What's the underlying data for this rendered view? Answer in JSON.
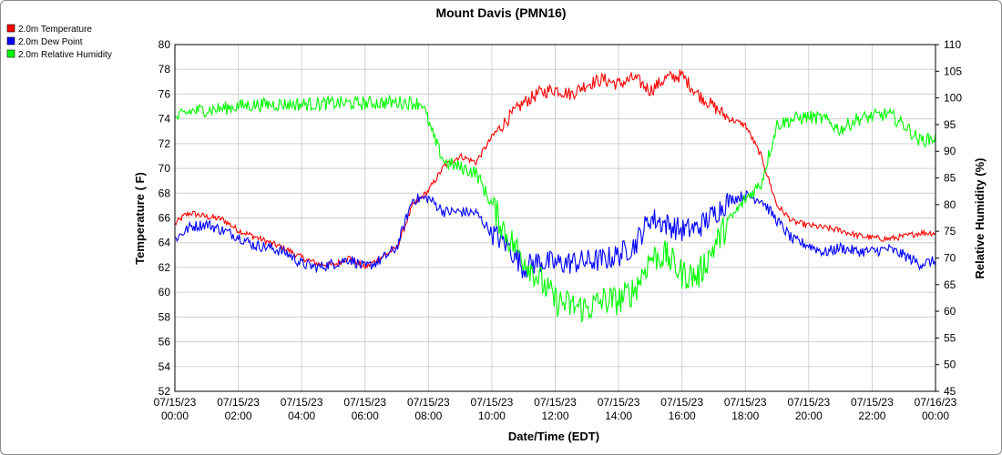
{
  "chart_data": {
    "type": "line",
    "title": "Mount Davis (PMN16)",
    "xlabel": "Date/Time (EDT)",
    "ylabel_left": "Temperature ( F)",
    "ylabel_right": "Relative Humidity (%)",
    "y_left_range": [
      52,
      80
    ],
    "y_right_range": [
      45,
      110
    ],
    "x_range_hours": [
      0,
      24
    ],
    "grid": true,
    "legend_position": "top-left",
    "x_ticks": [
      {
        "date": "07/15/23",
        "time": "00:00"
      },
      {
        "date": "07/15/23",
        "time": "02:00"
      },
      {
        "date": "07/15/23",
        "time": "04:00"
      },
      {
        "date": "07/15/23",
        "time": "06:00"
      },
      {
        "date": "07/15/23",
        "time": "08:00"
      },
      {
        "date": "07/15/23",
        "time": "10:00"
      },
      {
        "date": "07/15/23",
        "time": "12:00"
      },
      {
        "date": "07/15/23",
        "time": "14:00"
      },
      {
        "date": "07/15/23",
        "time": "16:00"
      },
      {
        "date": "07/15/23",
        "time": "18:00"
      },
      {
        "date": "07/15/23",
        "time": "20:00"
      },
      {
        "date": "07/15/23",
        "time": "22:00"
      },
      {
        "date": "07/16/23",
        "time": "00:00"
      }
    ],
    "y_left_ticks": [
      "52",
      "54",
      "56",
      "58",
      "60",
      "62",
      "64",
      "66",
      "68",
      "70",
      "72",
      "74",
      "76",
      "78",
      "80"
    ],
    "y_right_ticks": [
      "45",
      "50",
      "55",
      "60",
      "65",
      "70",
      "75",
      "80",
      "85",
      "90",
      "95",
      "100",
      "105",
      "110"
    ],
    "series": [
      {
        "name": "2.0m Temperature",
        "color": "#ff0000",
        "axis": "left",
        "x": [
          0,
          0.3,
          0.5,
          1,
          1.5,
          2,
          2.5,
          3,
          3.5,
          4,
          4.5,
          5,
          5.5,
          6,
          6.5,
          7,
          7.5,
          8,
          8.5,
          9,
          9.5,
          10,
          10.5,
          11,
          11.5,
          12,
          12.5,
          13,
          13.5,
          14,
          14.5,
          15,
          15.5,
          16,
          16.5,
          17,
          17.5,
          18,
          18.5,
          19,
          19.5,
          20,
          20.5,
          21,
          21.5,
          22,
          22.5,
          23,
          23.5,
          24
        ],
        "values": [
          65.5,
          66.2,
          66.4,
          66.1,
          65.9,
          65.0,
          64.5,
          64.0,
          63.5,
          62.8,
          62.3,
          62.2,
          62.8,
          62.0,
          62.8,
          63.6,
          67.0,
          68.2,
          70.2,
          71.0,
          70.5,
          72.5,
          74.0,
          75.3,
          76.1,
          76.4,
          76.0,
          76.8,
          77.2,
          76.8,
          77.3,
          76.3,
          77.3,
          77.5,
          76.0,
          75.0,
          74.0,
          73.5,
          71.0,
          67.0,
          65.7,
          65.4,
          65.2,
          65.0,
          64.6,
          64.4,
          64.3,
          64.5,
          64.8,
          64.8
        ]
      },
      {
        "name": "2.0m Dew Point",
        "color": "#0000ff",
        "axis": "left",
        "x": [
          0,
          0.5,
          1,
          1.5,
          2,
          2.5,
          3,
          3.5,
          4,
          4.5,
          5,
          5.5,
          6,
          6.5,
          7,
          7.5,
          8,
          8.5,
          9,
          9.5,
          10,
          10.5,
          11,
          11.5,
          12,
          12.5,
          13,
          13.5,
          14,
          14.5,
          15,
          15.5,
          16,
          16.5,
          17,
          17.5,
          18,
          18.5,
          19,
          19.5,
          20,
          20.5,
          21,
          21.5,
          22,
          22.5,
          23,
          23.5,
          24
        ],
        "values": [
          64.3,
          65.3,
          65.5,
          65.0,
          64.5,
          63.8,
          63.6,
          63.2,
          62.3,
          62.0,
          62.3,
          62.7,
          62.0,
          62.6,
          63.6,
          67.5,
          67.6,
          66.5,
          66.5,
          66.4,
          64.8,
          63.8,
          62.0,
          62.5,
          62.3,
          62.4,
          62.5,
          62.6,
          63.0,
          63.8,
          66.0,
          65.5,
          65.0,
          65.2,
          66.3,
          67.5,
          67.8,
          67.5,
          65.8,
          64.2,
          63.8,
          63.2,
          63.6,
          63.3,
          63.3,
          63.5,
          63.0,
          62.3,
          62.5
        ]
      },
      {
        "name": "2.0m Relative Humidity",
        "color": "#00ff00",
        "axis": "right",
        "x": [
          0,
          0.3,
          0.5,
          1,
          1.5,
          2,
          3,
          4,
          5,
          6,
          7,
          7.8,
          8.2,
          8.5,
          9,
          9.5,
          10,
          10.5,
          11,
          11.5,
          12,
          12.5,
          13,
          13.5,
          14,
          14.5,
          15,
          15.5,
          16,
          16.5,
          17,
          17.5,
          18,
          18.5,
          19,
          19.5,
          20,
          20.5,
          21,
          21.5,
          22,
          22.5,
          23,
          23.5,
          24
        ],
        "values": [
          96.0,
          97.0,
          97.5,
          97.8,
          98.0,
          98.5,
          98.8,
          98.8,
          99.0,
          99.0,
          99.2,
          99.0,
          92.0,
          88.0,
          87.0,
          86.0,
          80.0,
          74.0,
          70.0,
          66.0,
          62.0,
          61.0,
          60.5,
          62.0,
          62.0,
          64.0,
          70.0,
          70.5,
          67.0,
          66.5,
          72.0,
          77.0,
          81.0,
          84.0,
          95.0,
          96.0,
          96.5,
          96.0,
          94.0,
          96.0,
          96.5,
          97.0,
          95.0,
          92.0,
          92.5
        ]
      }
    ]
  }
}
